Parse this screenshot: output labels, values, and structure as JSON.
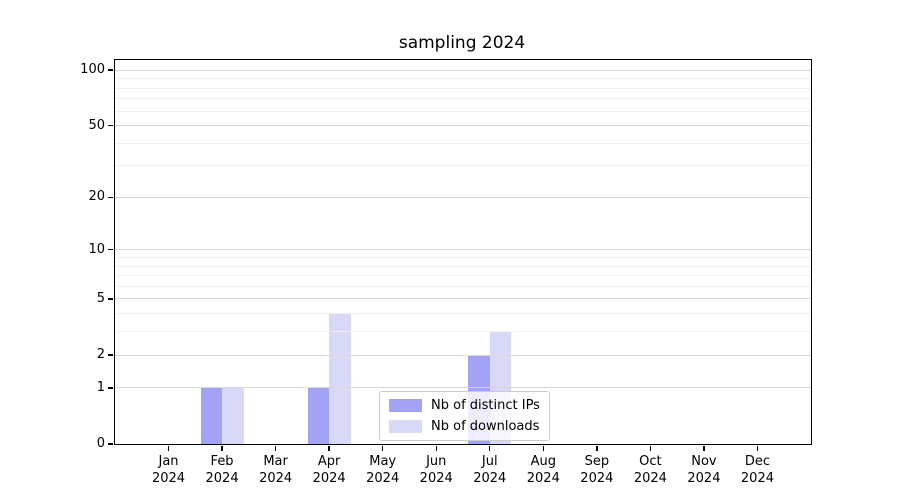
{
  "figure": {
    "title": "sampling 2024",
    "background": "#ffffff"
  },
  "chart_data": {
    "type": "bar",
    "title": "sampling 2024",
    "categories": [
      "Jan",
      "Feb",
      "Mar",
      "Apr",
      "May",
      "Jun",
      "Jul",
      "Aug",
      "Sep",
      "Oct",
      "Nov",
      "Dec"
    ],
    "year_label": "2024",
    "series": [
      {
        "name": "Nb of distinct IPs",
        "color": "#a3a3f5",
        "values": [
          0,
          1,
          0,
          1,
          0,
          0,
          2,
          0,
          0,
          0,
          0,
          0
        ]
      },
      {
        "name": "Nb of downloads",
        "color": "#d8d8f7",
        "values": [
          0,
          1,
          0,
          4,
          0,
          0,
          3,
          0,
          0,
          0,
          0,
          0
        ]
      }
    ],
    "xlabel": "",
    "ylabel": "",
    "yscale": "log1p",
    "ylim": [
      0,
      113.5
    ],
    "y_ticks": [
      0,
      1,
      2,
      5,
      10,
      20,
      50,
      100
    ],
    "y_minor_ticks": [
      3,
      4,
      6,
      7,
      8,
      9,
      30,
      40,
      60,
      70,
      80,
      90
    ],
    "grid": true,
    "legend_position": "lower center"
  },
  "legend": {
    "entries": [
      "Nb of distinct IPs",
      "Nb of downloads"
    ]
  },
  "colors": {
    "bar_distinct_ips": "#a3a3f5",
    "bar_downloads": "#d8d8f7",
    "grid_major": "#d7d7d7",
    "grid_minor": "#efefef",
    "axis": "#000000",
    "legend_border": "#cccccc",
    "text": "#000000"
  }
}
